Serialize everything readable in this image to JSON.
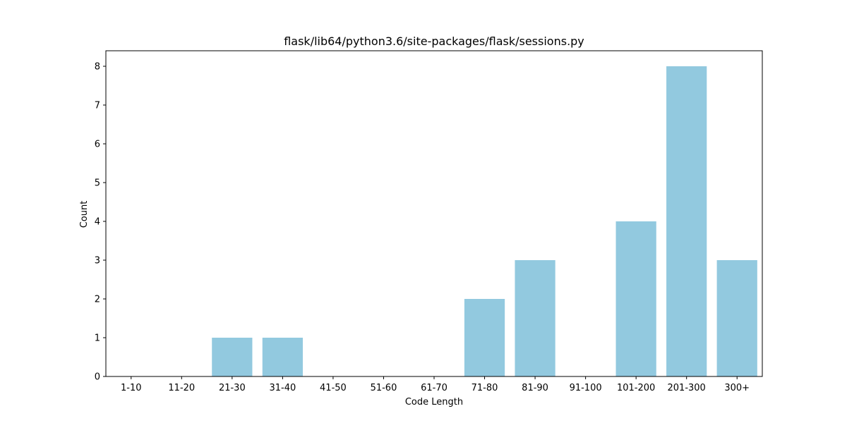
{
  "chart_data": {
    "type": "bar",
    "title": "flask/lib64/python3.6/site-packages/flask/sessions.py",
    "xlabel": "Code Length",
    "ylabel": "Count",
    "categories": [
      "1-10",
      "11-20",
      "21-30",
      "31-40",
      "41-50",
      "51-60",
      "61-70",
      "71-80",
      "81-90",
      "91-100",
      "101-200",
      "201-300",
      "300+"
    ],
    "values": [
      0,
      0,
      1,
      1,
      0,
      0,
      0,
      2,
      3,
      0,
      4,
      8,
      3
    ],
    "ylim": [
      0,
      8.4
    ],
    "yticks": [
      0,
      1,
      2,
      3,
      4,
      5,
      6,
      7,
      8
    ],
    "grid": false,
    "legend": "none",
    "bar_color": "#92c9df"
  }
}
